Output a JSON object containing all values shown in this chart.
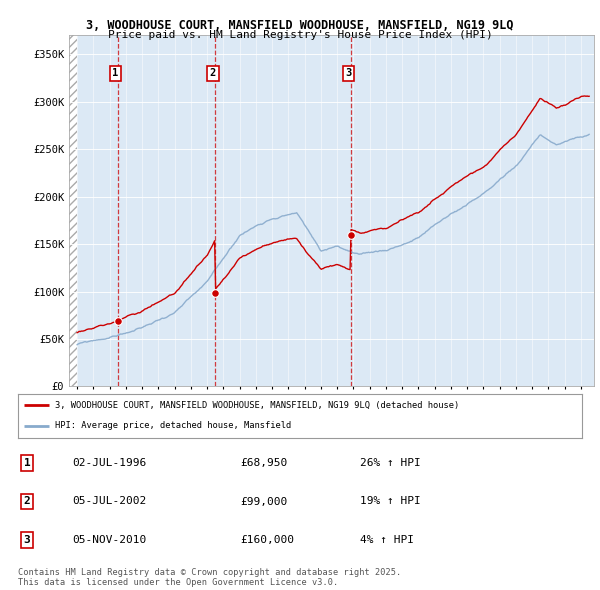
{
  "title_line1": "3, WOODHOUSE COURT, MANSFIELD WOODHOUSE, MANSFIELD, NG19 9LQ",
  "title_line2": "Price paid vs. HM Land Registry's House Price Index (HPI)",
  "background_color": "#ffffff",
  "plot_bg_color": "#dce9f5",
  "red_color": "#cc0000",
  "blue_color": "#88aacc",
  "sale_points": [
    {
      "label": "1",
      "date_num": 1996.5,
      "price": 68950
    },
    {
      "label": "2",
      "date_num": 2002.5,
      "price": 99000
    },
    {
      "label": "3",
      "date_num": 2010.85,
      "price": 160000
    }
  ],
  "legend_entries": [
    {
      "color": "#cc0000",
      "text": "3, WOODHOUSE COURT, MANSFIELD WOODHOUSE, MANSFIELD, NG19 9LQ (detached house)"
    },
    {
      "color": "#88aacc",
      "text": "HPI: Average price, detached house, Mansfield"
    }
  ],
  "table_rows": [
    {
      "num": "1",
      "date": "02-JUL-1996",
      "price": "£68,950",
      "hpi": "26% ↑ HPI"
    },
    {
      "num": "2",
      "date": "05-JUL-2002",
      "price": "£99,000",
      "hpi": "19% ↑ HPI"
    },
    {
      "num": "3",
      "date": "05-NOV-2010",
      "price": "£160,000",
      "hpi": "4% ↑ HPI"
    }
  ],
  "footer": "Contains HM Land Registry data © Crown copyright and database right 2025.\nThis data is licensed under the Open Government Licence v3.0.",
  "ylim": [
    0,
    370000
  ],
  "xlim": [
    1993.5,
    2025.8
  ],
  "yticks": [
    0,
    50000,
    100000,
    150000,
    200000,
    250000,
    300000,
    350000
  ],
  "ytick_labels": [
    "£0",
    "£50K",
    "£100K",
    "£150K",
    "£200K",
    "£250K",
    "£300K",
    "£350K"
  ]
}
